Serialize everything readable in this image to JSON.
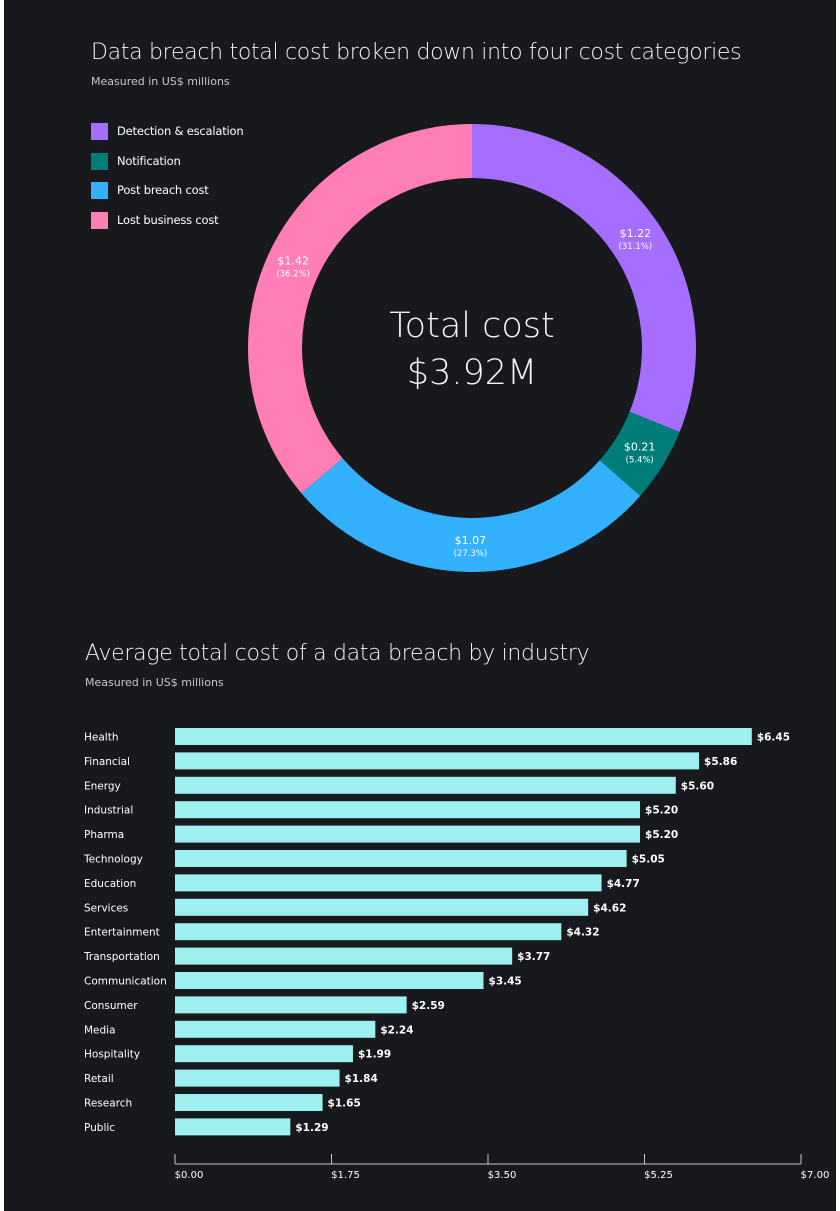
{
  "donut": {
    "title": "Data breach total cost broken down into four cost categories",
    "subtitle": "Measured in US$ millions",
    "center_line1": "Total cost",
    "center_line2": "$3.92M"
  },
  "industry": {
    "title": "Average total cost of a data breach by industry",
    "subtitle": "Measured in US$ millions"
  },
  "chart_data": [
    {
      "type": "pie",
      "title": "Data breach total cost broken down into four cost categories",
      "subtitle": "Measured in US$ millions",
      "total_label": "$3.92M",
      "legend_position": "top-left",
      "slices": [
        {
          "name": "Detection & escalation",
          "value": 1.22,
          "value_label": "$1.22",
          "pct_label": "(31.1%)",
          "color": "#a56eff"
        },
        {
          "name": "Notification",
          "value": 0.21,
          "value_label": "$0.21",
          "pct_label": "(5.4%)",
          "color": "#007d79"
        },
        {
          "name": "Post breach cost",
          "value": 1.07,
          "value_label": "$1.07",
          "pct_label": "(27.3%)",
          "color": "#33b1ff"
        },
        {
          "name": "Lost business cost",
          "value": 1.42,
          "value_label": "$1.42",
          "pct_label": "(36.2%)",
          "color": "#ff7eb6"
        }
      ]
    },
    {
      "type": "bar",
      "orientation": "horizontal",
      "title": "Average total cost of a data breach by industry",
      "subtitle": "Measured in US$ millions",
      "bar_color": "#9ef0f0",
      "categories": [
        "Health",
        "Financial",
        "Energy",
        "Industrial",
        "Pharma",
        "Technology",
        "Education",
        "Services",
        "Entertainment",
        "Transportation",
        "Communication",
        "Consumer",
        "Media",
        "Hospitality",
        "Retail",
        "Research",
        "Public"
      ],
      "values": [
        6.45,
        5.86,
        5.6,
        5.2,
        5.2,
        5.05,
        4.77,
        4.62,
        4.32,
        3.77,
        3.45,
        2.59,
        2.24,
        1.99,
        1.84,
        1.65,
        1.29
      ],
      "value_labels": [
        "$6.45",
        "$5.86",
        "$5.60",
        "$5.20",
        "$5.20",
        "$5.05",
        "$4.77",
        "$4.62",
        "$4.32",
        "$3.77",
        "$3.45",
        "$2.59",
        "$2.24",
        "$1.99",
        "$1.84",
        "$1.65",
        "$1.29"
      ],
      "xlim": [
        0,
        7
      ],
      "x_ticks": [
        0,
        1.75,
        3.5,
        5.25,
        7
      ],
      "x_tick_labels": [
        "$0.00",
        "$1.75",
        "$3.50",
        "$5.25",
        "$7.00"
      ]
    }
  ]
}
